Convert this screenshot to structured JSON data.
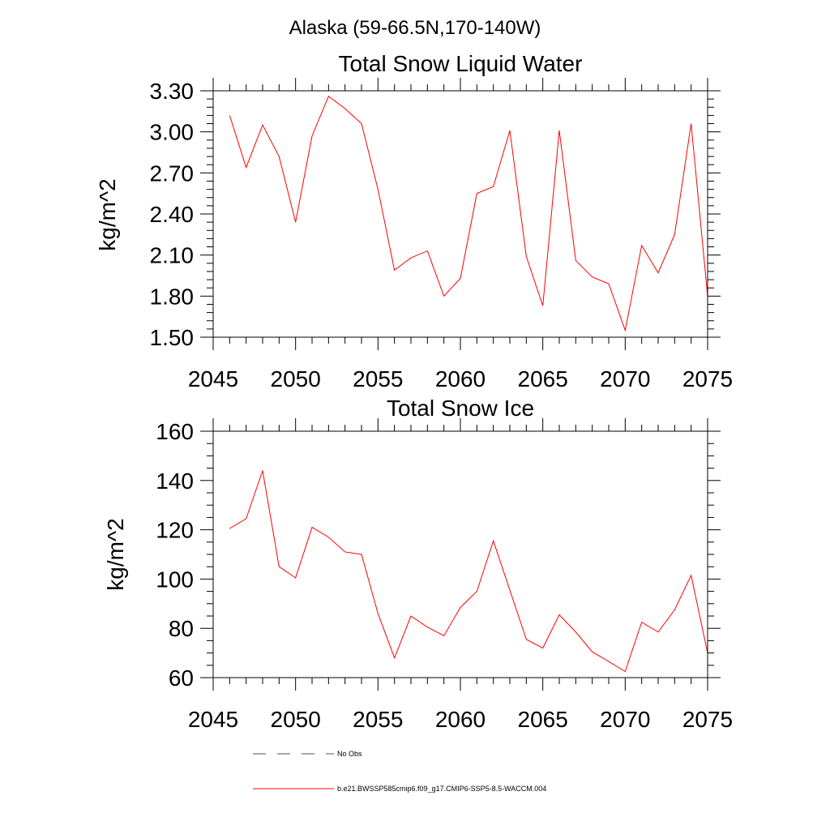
{
  "title": "Alaska (59-66.5N,170-140W)",
  "chart_data": [
    {
      "type": "line",
      "title": "Total Snow Liquid Water",
      "xlabel": "",
      "ylabel": "kg/m^2",
      "xlim": [
        2045,
        2075
      ],
      "ylim": [
        1.5,
        3.3
      ],
      "xticks": [
        2045,
        2050,
        2055,
        2060,
        2065,
        2070,
        2075
      ],
      "xtick_labels": [
        "2045",
        "2050",
        "2055",
        "2060",
        "2065",
        "2070",
        "2075"
      ],
      "yticks": [
        1.5,
        1.8,
        2.1,
        2.4,
        2.7,
        3.0,
        3.3
      ],
      "ytick_labels": [
        "1.50",
        "1.80",
        "2.10",
        "2.40",
        "2.70",
        "3.00",
        "3.30"
      ],
      "x": [
        2046,
        2047,
        2048,
        2049,
        2050,
        2051,
        2052,
        2053,
        2054,
        2055,
        2056,
        2057,
        2058,
        2059,
        2060,
        2061,
        2062,
        2063,
        2064,
        2065,
        2066,
        2067,
        2068,
        2069,
        2070,
        2071,
        2072,
        2073,
        2074,
        2075
      ],
      "series": [
        {
          "name": "b.e21.BWSSP585cmip6.f09_g17.CMIP6-SSP5-8.5-WACCM.004",
          "color": "#ff0000",
          "values": [
            3.12,
            2.74,
            3.05,
            2.82,
            2.34,
            2.97,
            3.26,
            3.17,
            3.06,
            2.58,
            1.99,
            2.08,
            2.13,
            1.8,
            1.93,
            2.55,
            2.6,
            3.01,
            2.09,
            1.73,
            3.01,
            2.06,
            1.94,
            1.89,
            1.55,
            2.17,
            1.97,
            2.25,
            3.06,
            1.8
          ]
        }
      ]
    },
    {
      "type": "line",
      "title": "Total Snow Ice",
      "xlabel": "",
      "ylabel": "kg/m^2",
      "xlim": [
        2045,
        2075
      ],
      "ylim": [
        60,
        160
      ],
      "xticks": [
        2045,
        2050,
        2055,
        2060,
        2065,
        2070,
        2075
      ],
      "xtick_labels": [
        "2045",
        "2050",
        "2055",
        "2060",
        "2065",
        "2070",
        "2075"
      ],
      "yticks": [
        60,
        80,
        100,
        120,
        140,
        160
      ],
      "ytick_labels": [
        "60",
        "80",
        "100",
        "120",
        "140",
        "160"
      ],
      "x": [
        2046,
        2047,
        2048,
        2049,
        2050,
        2051,
        2052,
        2053,
        2054,
        2055,
        2056,
        2057,
        2058,
        2059,
        2060,
        2061,
        2062,
        2063,
        2064,
        2065,
        2066,
        2067,
        2068,
        2069,
        2070,
        2071,
        2072,
        2073,
        2074,
        2075
      ],
      "series": [
        {
          "name": "b.e21.BWSSP585cmip6.f09_g17.CMIP6-SSP5-8.5-WACCM.004",
          "color": "#ff0000",
          "values": [
            120.5,
            124.5,
            144.0,
            105.0,
            100.5,
            121.0,
            117.0,
            111.0,
            110.0,
            86.0,
            68.0,
            85.0,
            80.5,
            77.0,
            88.5,
            95.0,
            115.5,
            95.5,
            75.5,
            72.0,
            85.5,
            78.5,
            70.5,
            66.5,
            62.5,
            82.5,
            78.5,
            87.5,
            101.5,
            70.0
          ]
        }
      ]
    }
  ],
  "legend": {
    "items": [
      {
        "label": "No Obs",
        "style": "dashed",
        "color": "#4a4a8a"
      },
      {
        "label": "b.e21.BWSSP585cmip6.f09_g17.CMIP6-SSP5-8.5-WACCM.004",
        "style": "solid",
        "color": "#ff0000"
      }
    ]
  }
}
